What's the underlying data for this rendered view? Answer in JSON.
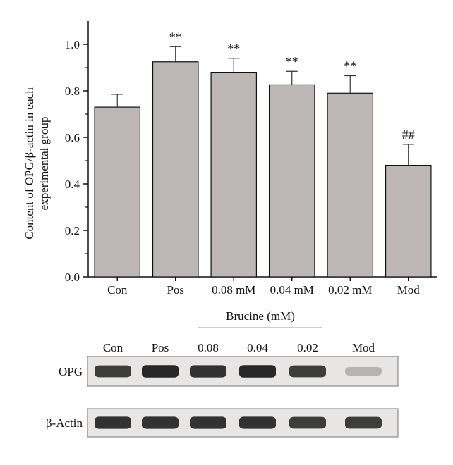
{
  "chart_data": {
    "type": "bar",
    "categories": [
      "Con",
      "Pos",
      "0.08 mM",
      "0.04 mM",
      "0.02 mM",
      "Mod"
    ],
    "values": [
      0.73,
      0.925,
      0.88,
      0.826,
      0.79,
      0.48
    ],
    "error": [
      0.055,
      0.065,
      0.06,
      0.058,
      0.075,
      0.09
    ],
    "significance": [
      "",
      "**",
      "**",
      "**",
      "**",
      "##"
    ],
    "ylabel_line1": "Content of OPG/β-actin in each",
    "ylabel_line2": "experimental group",
    "ylim": [
      0,
      1.1
    ],
    "yticks": [
      "0.0",
      "0.2",
      "0.4",
      "0.6",
      "0.8",
      "1.0"
    ],
    "ytick_values": [
      0,
      0.2,
      0.4,
      0.6,
      0.8,
      1.0
    ],
    "group_label": "Brucine (mM)",
    "bar_color": "#bdb8b5"
  },
  "blot": {
    "lanes": [
      "Con",
      "Pos",
      "0.08",
      "0.04",
      "0.02",
      "Mod"
    ],
    "rows": [
      {
        "label": "OPG",
        "intensity": [
          0.85,
          0.95,
          0.9,
          0.95,
          0.85,
          0.25
        ]
      },
      {
        "label": "β-Actin",
        "intensity": [
          0.9,
          0.9,
          0.9,
          0.9,
          0.85,
          0.85
        ]
      }
    ],
    "band_color": "#1e1e1e",
    "background_color": "#e8e6e4"
  }
}
